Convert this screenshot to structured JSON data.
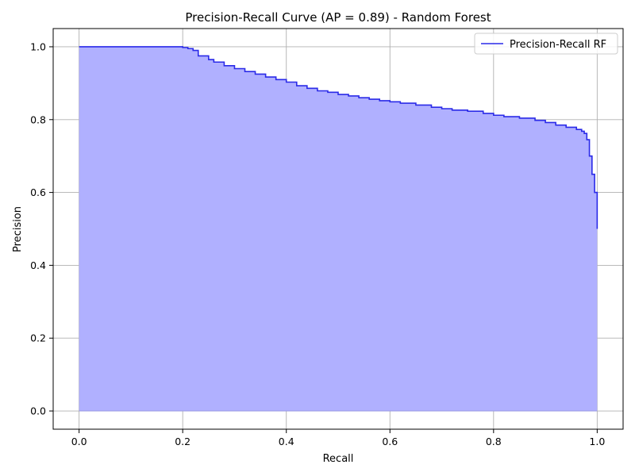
{
  "chart_data": {
    "type": "area",
    "title": "Precision-Recall Curve (AP = 0.89) - Random Forest",
    "xlabel": "Recall",
    "ylabel": "Precision",
    "xlim": [
      -0.05,
      1.05
    ],
    "ylim": [
      -0.05,
      1.05
    ],
    "grid": true,
    "legend_position": "top-right",
    "x_ticks": [
      0.0,
      0.2,
      0.4,
      0.6,
      0.8,
      1.0
    ],
    "x_tick_labels": [
      "0.0",
      "0.2",
      "0.4",
      "0.6",
      "0.8",
      "1.0"
    ],
    "y_ticks": [
      0.0,
      0.2,
      0.4,
      0.6,
      0.8,
      1.0
    ],
    "y_tick_labels": [
      "0.0",
      "0.2",
      "0.4",
      "0.6",
      "0.8",
      "1.0"
    ],
    "series": [
      {
        "name": "Precision-Recall RF",
        "color": "#0000ff",
        "fill_color": "#b0b0ff",
        "x": [
          0.0,
          0.18,
          0.2,
          0.21,
          0.22,
          0.23,
          0.25,
          0.26,
          0.28,
          0.3,
          0.32,
          0.34,
          0.36,
          0.38,
          0.4,
          0.42,
          0.44,
          0.46,
          0.48,
          0.5,
          0.52,
          0.54,
          0.56,
          0.58,
          0.6,
          0.62,
          0.65,
          0.68,
          0.7,
          0.72,
          0.75,
          0.78,
          0.8,
          0.82,
          0.85,
          0.88,
          0.9,
          0.92,
          0.94,
          0.96,
          0.97,
          0.975,
          0.98,
          0.985,
          0.99,
          0.995,
          1.0,
          1.0
        ],
        "y": [
          1.0,
          1.0,
          0.998,
          0.995,
          0.99,
          0.975,
          0.965,
          0.958,
          0.948,
          0.94,
          0.932,
          0.925,
          0.917,
          0.91,
          0.903,
          0.893,
          0.886,
          0.879,
          0.875,
          0.869,
          0.865,
          0.86,
          0.856,
          0.852,
          0.849,
          0.845,
          0.84,
          0.834,
          0.83,
          0.826,
          0.823,
          0.817,
          0.812,
          0.808,
          0.804,
          0.798,
          0.792,
          0.785,
          0.779,
          0.773,
          0.768,
          0.762,
          0.745,
          0.7,
          0.65,
          0.6,
          0.55,
          0.5
        ]
      }
    ]
  }
}
